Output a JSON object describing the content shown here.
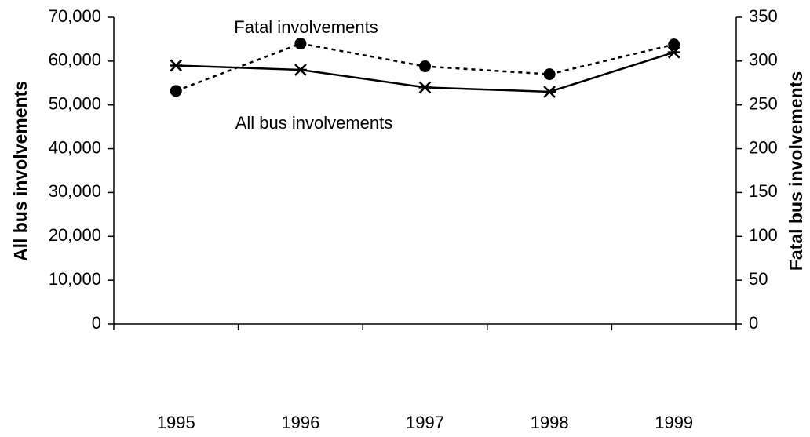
{
  "chart_data": {
    "type": "line",
    "categories": [
      "1995",
      "1996",
      "1997",
      "1998",
      "1999"
    ],
    "ylabel": "All bus involvements",
    "y2label": "Fatal bus involvements",
    "ylim": [
      0,
      70000
    ],
    "yticks": [
      0,
      {
        "value": 10000,
        "label": "10,000"
      },
      {
        "value": 20000,
        "label": "20,000"
      },
      {
        "value": 30000,
        "label": "30,000"
      },
      {
        "value": 40000,
        "label": "40,000"
      },
      {
        "value": 50000,
        "label": "50,000"
      },
      {
        "value": 60000,
        "label": "60,000"
      },
      {
        "value": 70000,
        "label": "70,000"
      }
    ],
    "y2lim": [
      0,
      350
    ],
    "y2ticks": [
      0,
      50,
      100,
      150,
      200,
      250,
      300,
      350
    ],
    "grid": false,
    "series": [
      {
        "name": "All bus involvements",
        "color": "#000000",
        "line": "solid",
        "marker": "asterisk",
        "values": [
          59000,
          58000,
          54000,
          53000,
          62000
        ]
      },
      {
        "name": "Fatal involvements",
        "color": "#000000",
        "line": "dotted",
        "marker": "circle",
        "axis": "y2",
        "values": [
          266,
          320,
          294,
          285,
          319
        ]
      }
    ]
  }
}
